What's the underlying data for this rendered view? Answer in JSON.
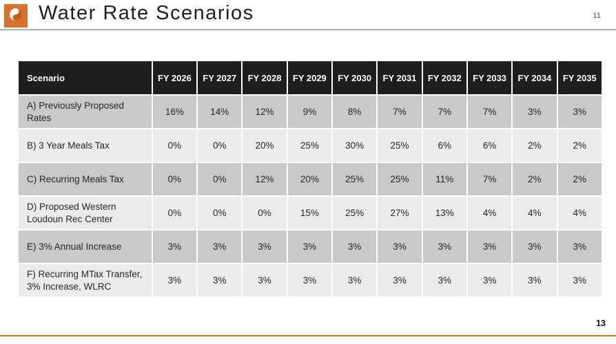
{
  "header": {
    "title": "Water Rate Scenarios",
    "page_number_small": "11"
  },
  "footer": {
    "page_number": "13"
  },
  "colors": {
    "accent_orange": "#D9712E",
    "logo_swirl": "#C75E1F",
    "header_bg": "#1E1E1E",
    "row_dark": "#C9C9C9",
    "row_light": "#EBEBEB"
  },
  "table": {
    "columns": [
      "Scenario",
      "FY 2026",
      "FY 2027",
      "FY 2028",
      "FY 2029",
      "FY 2030",
      "FY 2031",
      "FY 2032",
      "FY 2033",
      "FY 2034",
      "FY 2035"
    ],
    "rows": [
      {
        "label": "A) Previously Proposed Rates",
        "values": [
          "16%",
          "14%",
          "12%",
          "9%",
          "8%",
          "7%",
          "7%",
          "7%",
          "3%",
          "3%"
        ]
      },
      {
        "label": "B) 3 Year Meals Tax",
        "values": [
          "0%",
          "0%",
          "20%",
          "25%",
          "30%",
          "25%",
          "6%",
          "6%",
          "2%",
          "2%"
        ]
      },
      {
        "label": "C) Recurring Meals Tax",
        "values": [
          "0%",
          "0%",
          "12%",
          "20%",
          "25%",
          "25%",
          "11%",
          "7%",
          "2%",
          "2%"
        ]
      },
      {
        "label": "D) Proposed Western Loudoun Rec Center",
        "values": [
          "0%",
          "0%",
          "0%",
          "15%",
          "25%",
          "27%",
          "13%",
          "4%",
          "4%",
          "4%"
        ]
      },
      {
        "label": "E) 3% Annual Increase",
        "values": [
          "3%",
          "3%",
          "3%",
          "3%",
          "3%",
          "3%",
          "3%",
          "3%",
          "3%",
          "3%"
        ]
      },
      {
        "label": "F) Recurring MTax Transfer, 3% Increase, WLRC",
        "values": [
          "3%",
          "3%",
          "3%",
          "3%",
          "3%",
          "3%",
          "3%",
          "3%",
          "3%",
          "3%"
        ]
      }
    ]
  }
}
